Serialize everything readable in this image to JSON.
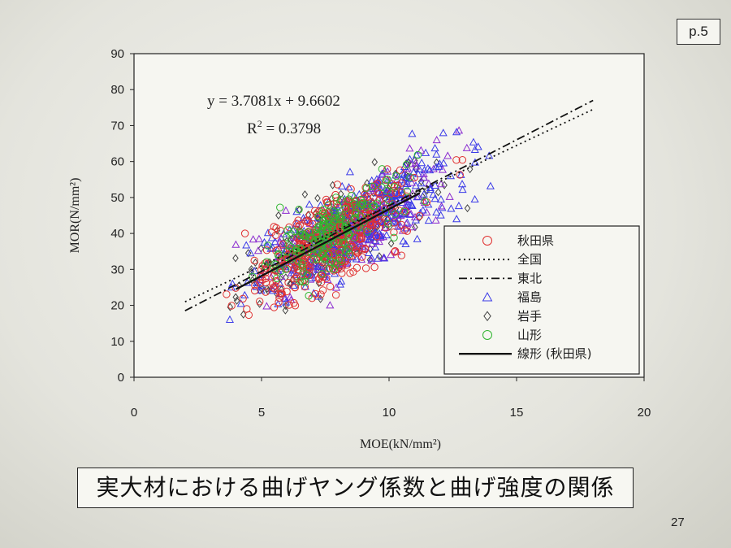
{
  "page_badge": "p.5",
  "caption": "実大材における曲げヤング係数と曲げ強度の関係",
  "slide_number": "27",
  "chart_data": {
    "type": "scatter",
    "xlabel": "MOE(kN/mm²)",
    "ylabel": "MOR(N/mm²)",
    "xlim": [
      0,
      20
    ],
    "ylim": [
      0,
      90
    ],
    "xticks": [
      0,
      5,
      10,
      15,
      20
    ],
    "yticks": [
      0,
      10,
      20,
      30,
      40,
      50,
      60,
      70,
      80,
      90
    ],
    "equation": "y = 3.7081x + 9.6602",
    "r2_prefix": "R",
    "r2_sup": "2",
    "r2_value": " = 0.3798",
    "legend_position": "bottom-right",
    "series": [
      {
        "name": "秋田県",
        "marker": "circle",
        "color": "#e03030",
        "cluster": {
          "mx": 7.6,
          "my": 37.5,
          "sx": 1.55,
          "sy": 8.2,
          "n": 420
        }
      },
      {
        "name": "福島",
        "marker": "triangle",
        "color": "#3a3ae8",
        "cluster": {
          "mx": 8.6,
          "my": 41.5,
          "sx": 2.0,
          "sy": 8.0,
          "n": 620
        }
      },
      {
        "name": "岩手",
        "marker": "diamond",
        "color": "#444444",
        "cluster": {
          "mx": 7.9,
          "my": 40.0,
          "sx": 1.9,
          "sy": 8.5,
          "n": 230
        }
      },
      {
        "name": "山形",
        "marker": "circle",
        "color": "#2fb52f",
        "cluster": {
          "mx": 7.6,
          "my": 39.5,
          "sx": 1.4,
          "sy": 6.5,
          "n": 190
        }
      }
    ],
    "lines": [
      {
        "name": "全国",
        "style": "dotted",
        "color": "#111111",
        "points": [
          [
            2.0,
            21.0
          ],
          [
            18.0,
            74.5
          ]
        ]
      },
      {
        "name": "東北",
        "style": "dashdot",
        "color": "#111111",
        "points": [
          [
            2.0,
            18.5
          ],
          [
            18.0,
            77.0
          ]
        ]
      },
      {
        "name": "線形 (秋田県)",
        "style": "solid",
        "color": "#111111",
        "points": [
          [
            4.0,
            24.5
          ],
          [
            11.2,
            51.2
          ]
        ]
      }
    ],
    "legend_order": [
      "秋田県",
      "全国",
      "東北",
      "福島",
      "岩手",
      "山形",
      "線形 (秋田県)"
    ],
    "colors": {
      "purple_blend": "#8a2bd0"
    }
  }
}
